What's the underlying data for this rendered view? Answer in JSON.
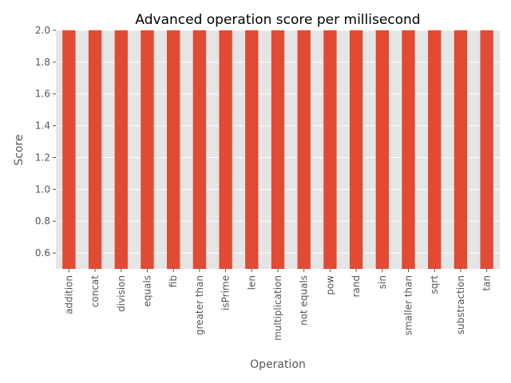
{
  "chart_data": {
    "type": "bar",
    "title": "Advanced operation score per millisecond",
    "xlabel": "Operation",
    "ylabel": "Score",
    "categories": [
      "addition",
      "concat",
      "division",
      "equals",
      "fib",
      "greater than",
      "isPrime",
      "len",
      "multiplication",
      "not equals",
      "pow",
      "rand",
      "sin",
      "smaller than",
      "sqrt",
      "substraction",
      "tan"
    ],
    "values": [
      2.0,
      2.0,
      2.0,
      2.0,
      2.0,
      2.0,
      2.0,
      2.0,
      2.0,
      2.0,
      2.0,
      2.0,
      2.0,
      2.0,
      2.0,
      2.0,
      2.0
    ],
    "ylim": [
      0.5,
      2.0
    ],
    "yticks": [
      "0.6",
      "0.8",
      "1.0",
      "1.2",
      "1.4",
      "1.6",
      "1.8",
      "2.0"
    ],
    "grid": true,
    "legend": "none",
    "colors": {
      "bar": "#E24A33",
      "plot_background": "#E5E5E5",
      "grid": "#FFFFFF",
      "text": "#555555"
    }
  }
}
